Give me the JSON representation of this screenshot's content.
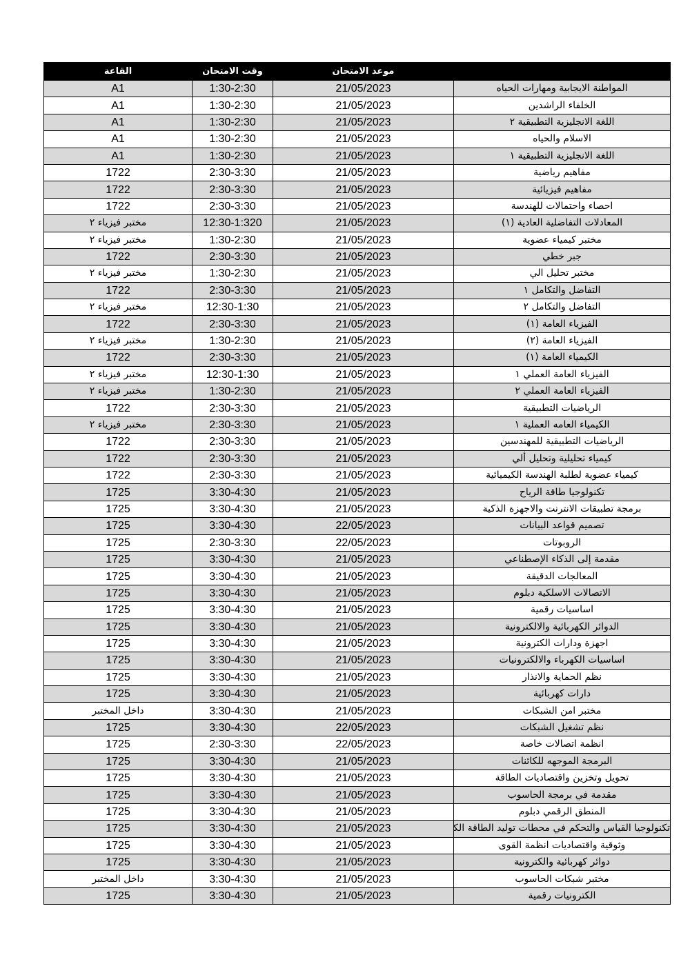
{
  "headers": {
    "hall": "القاعة",
    "time": "وقت الامتحان",
    "date": "موعد الامتحان",
    "subject": ""
  },
  "rows": [
    [
      "المواطنة الايجابية ومهارات الحياه",
      "21/05/2023",
      "1:30-2:30",
      "A1"
    ],
    [
      "الخلفاء الراشدين",
      "21/05/2023",
      "1:30-2:30",
      "A1"
    ],
    [
      "اللغة الانجليزية التطبيقية ٢",
      "21/05/2023",
      "1:30-2:30",
      "A1"
    ],
    [
      "الاسلام والحياه",
      "21/05/2023",
      "1:30-2:30",
      "A1"
    ],
    [
      "اللغة الانجليزية التطبيقية ١",
      "21/05/2023",
      "1:30-2:30",
      "A1"
    ],
    [
      "مفاهيم رياضية",
      "21/05/2023",
      "2:30-3:30",
      "1722"
    ],
    [
      "مفاهيم فيزيائية",
      "21/05/2023",
      "2:30-3:30",
      "1722"
    ],
    [
      "احصاء واحتمالات للهندسة",
      "21/05/2023",
      "2:30-3:30",
      "1722"
    ],
    [
      "المعادلات التفاضلية العادية (١)",
      "21/05/2023",
      "12:30-1:320",
      "مختبر فيزياء ٢"
    ],
    [
      "مختبر كيمياء عضوية",
      "21/05/2023",
      "1:30-2:30",
      "مختبر فيزياء ٢"
    ],
    [
      "جبر خطي",
      "21/05/2023",
      "2:30-3:30",
      "1722"
    ],
    [
      "مختبر تحليل الي",
      "21/05/2023",
      "1:30-2:30",
      "مختبر فيزياء ٢"
    ],
    [
      "التفاضل والتكامل ١",
      "21/05/2023",
      "2:30-3:30",
      "1722"
    ],
    [
      "التفاضل والتكامل ٢",
      "21/05/2023",
      "12:30-1:30",
      "مختبر فيزياء ٢"
    ],
    [
      "الفيزياء العامة (١)",
      "21/05/2023",
      "2:30-3:30",
      "1722"
    ],
    [
      "الفيزياء العامة (٢)",
      "21/05/2023",
      "1:30-2:30",
      "مختبر فيزياء ٢"
    ],
    [
      "الكيمياء العامة (١)",
      "21/05/2023",
      "2:30-3:30",
      "1722"
    ],
    [
      "الفيزياء العامة العملي ١",
      "21/05/2023",
      "12:30-1:30",
      "مختبر فيزياء ٢"
    ],
    [
      "الفيزياء العامة العملي ٢",
      "21/05/2023",
      "1:30-2:30",
      "مختبر فيزياء ٢"
    ],
    [
      "الرياضيات التطبيقية",
      "21/05/2023",
      "2:30-3:30",
      "1722"
    ],
    [
      "الكيمياء العامه العملية ١",
      "21/05/2023",
      "2:30-3:30",
      "مختبر فيزياء ٢"
    ],
    [
      "الرياضيات التطبيقية للمهندسين",
      "21/05/2023",
      "2:30-3:30",
      "1722"
    ],
    [
      "كيمياء تحليلية وتحليل ألي",
      "21/05/2023",
      "2:30-3:30",
      "1722"
    ],
    [
      "كيمياء عضوية لطلبة الهندسة الكيميائية",
      "21/05/2023",
      "2:30-3:30",
      "1722"
    ],
    [
      "تكنولوجيا طاقة الرياح",
      "21/05/2023",
      "3:30-4:30",
      "1725"
    ],
    [
      "برمجة تطبيقات الانترنت والاجهزة الذكية",
      "21/05/2023",
      "3:30-4:30",
      "1725"
    ],
    [
      "تصميم قواعد البيانات",
      "22/05/2023",
      "3:30-4:30",
      "1725"
    ],
    [
      "الروبوتات",
      "22/05/2023",
      "2:30-3:30",
      "1725"
    ],
    [
      "مقدمة إلى الذكاء الإصطناعي",
      "21/05/2023",
      "3:30-4:30",
      "1725"
    ],
    [
      "المعالجات الدقيقة",
      "21/05/2023",
      "3:30-4:30",
      "1725"
    ],
    [
      "الاتصالات الاسلكية دبلوم",
      "21/05/2023",
      "3:30-4:30",
      "1725"
    ],
    [
      "اساسيات رقمية",
      "21/05/2023",
      "3:30-4:30",
      "1725"
    ],
    [
      "الدوائر الكهربائية والالكترونية",
      "21/05/2023",
      "3:30-4:30",
      "1725"
    ],
    [
      "اجهزة ودارات الكترونية",
      "21/05/2023",
      "3:30-4:30",
      "1725"
    ],
    [
      "اساسيات الكهرباء والالكترونيات",
      "21/05/2023",
      "3:30-4:30",
      "1725"
    ],
    [
      "نظم الحماية والانذار",
      "21/05/2023",
      "3:30-4:30",
      "1725"
    ],
    [
      "دارات كهربائية",
      "21/05/2023",
      "3:30-4:30",
      "1725"
    ],
    [
      "مختبر امن الشبكات",
      "21/05/2023",
      "3:30-4:30",
      "داخل المختبر"
    ],
    [
      "نظم تشغيل الشبكات",
      "22/05/2023",
      "3:30-4:30",
      "1725"
    ],
    [
      "انظمة اتصالات خاصة",
      "22/05/2023",
      "2:30-3:30",
      "1725"
    ],
    [
      "البرمجة الموجهه للكائنات",
      "21/05/2023",
      "3:30-4:30",
      "1725"
    ],
    [
      "تحويل وتخزين واقتصاديات الطاقة",
      "21/05/2023",
      "3:30-4:30",
      "1725"
    ],
    [
      "مقدمة في برمجة الحاسوب",
      "21/05/2023",
      "3:30-4:30",
      "1725"
    ],
    [
      "المنطق الرقمي دبلوم",
      "21/05/2023",
      "3:30-4:30",
      "1725"
    ],
    [
      "تكنولوجيا القياس والتحكم في محطات توليد الطاقة الكهربائية",
      "21/05/2023",
      "3:30-4:30",
      "1725"
    ],
    [
      "وثوقية واقتصاديات انظمة القوى",
      "21/05/2023",
      "3:30-4:30",
      "1725"
    ],
    [
      "دوائر كهربائية والكترونية",
      "21/05/2023",
      "3:30-4:30",
      "1725"
    ],
    [
      "مختبر شبكات الحاسوب",
      "21/05/2023",
      "3:30-4:30",
      "داخل المختبر"
    ],
    [
      "الكترونيات رقمية",
      "21/05/2023",
      "3:30-4:30",
      "1725"
    ]
  ]
}
